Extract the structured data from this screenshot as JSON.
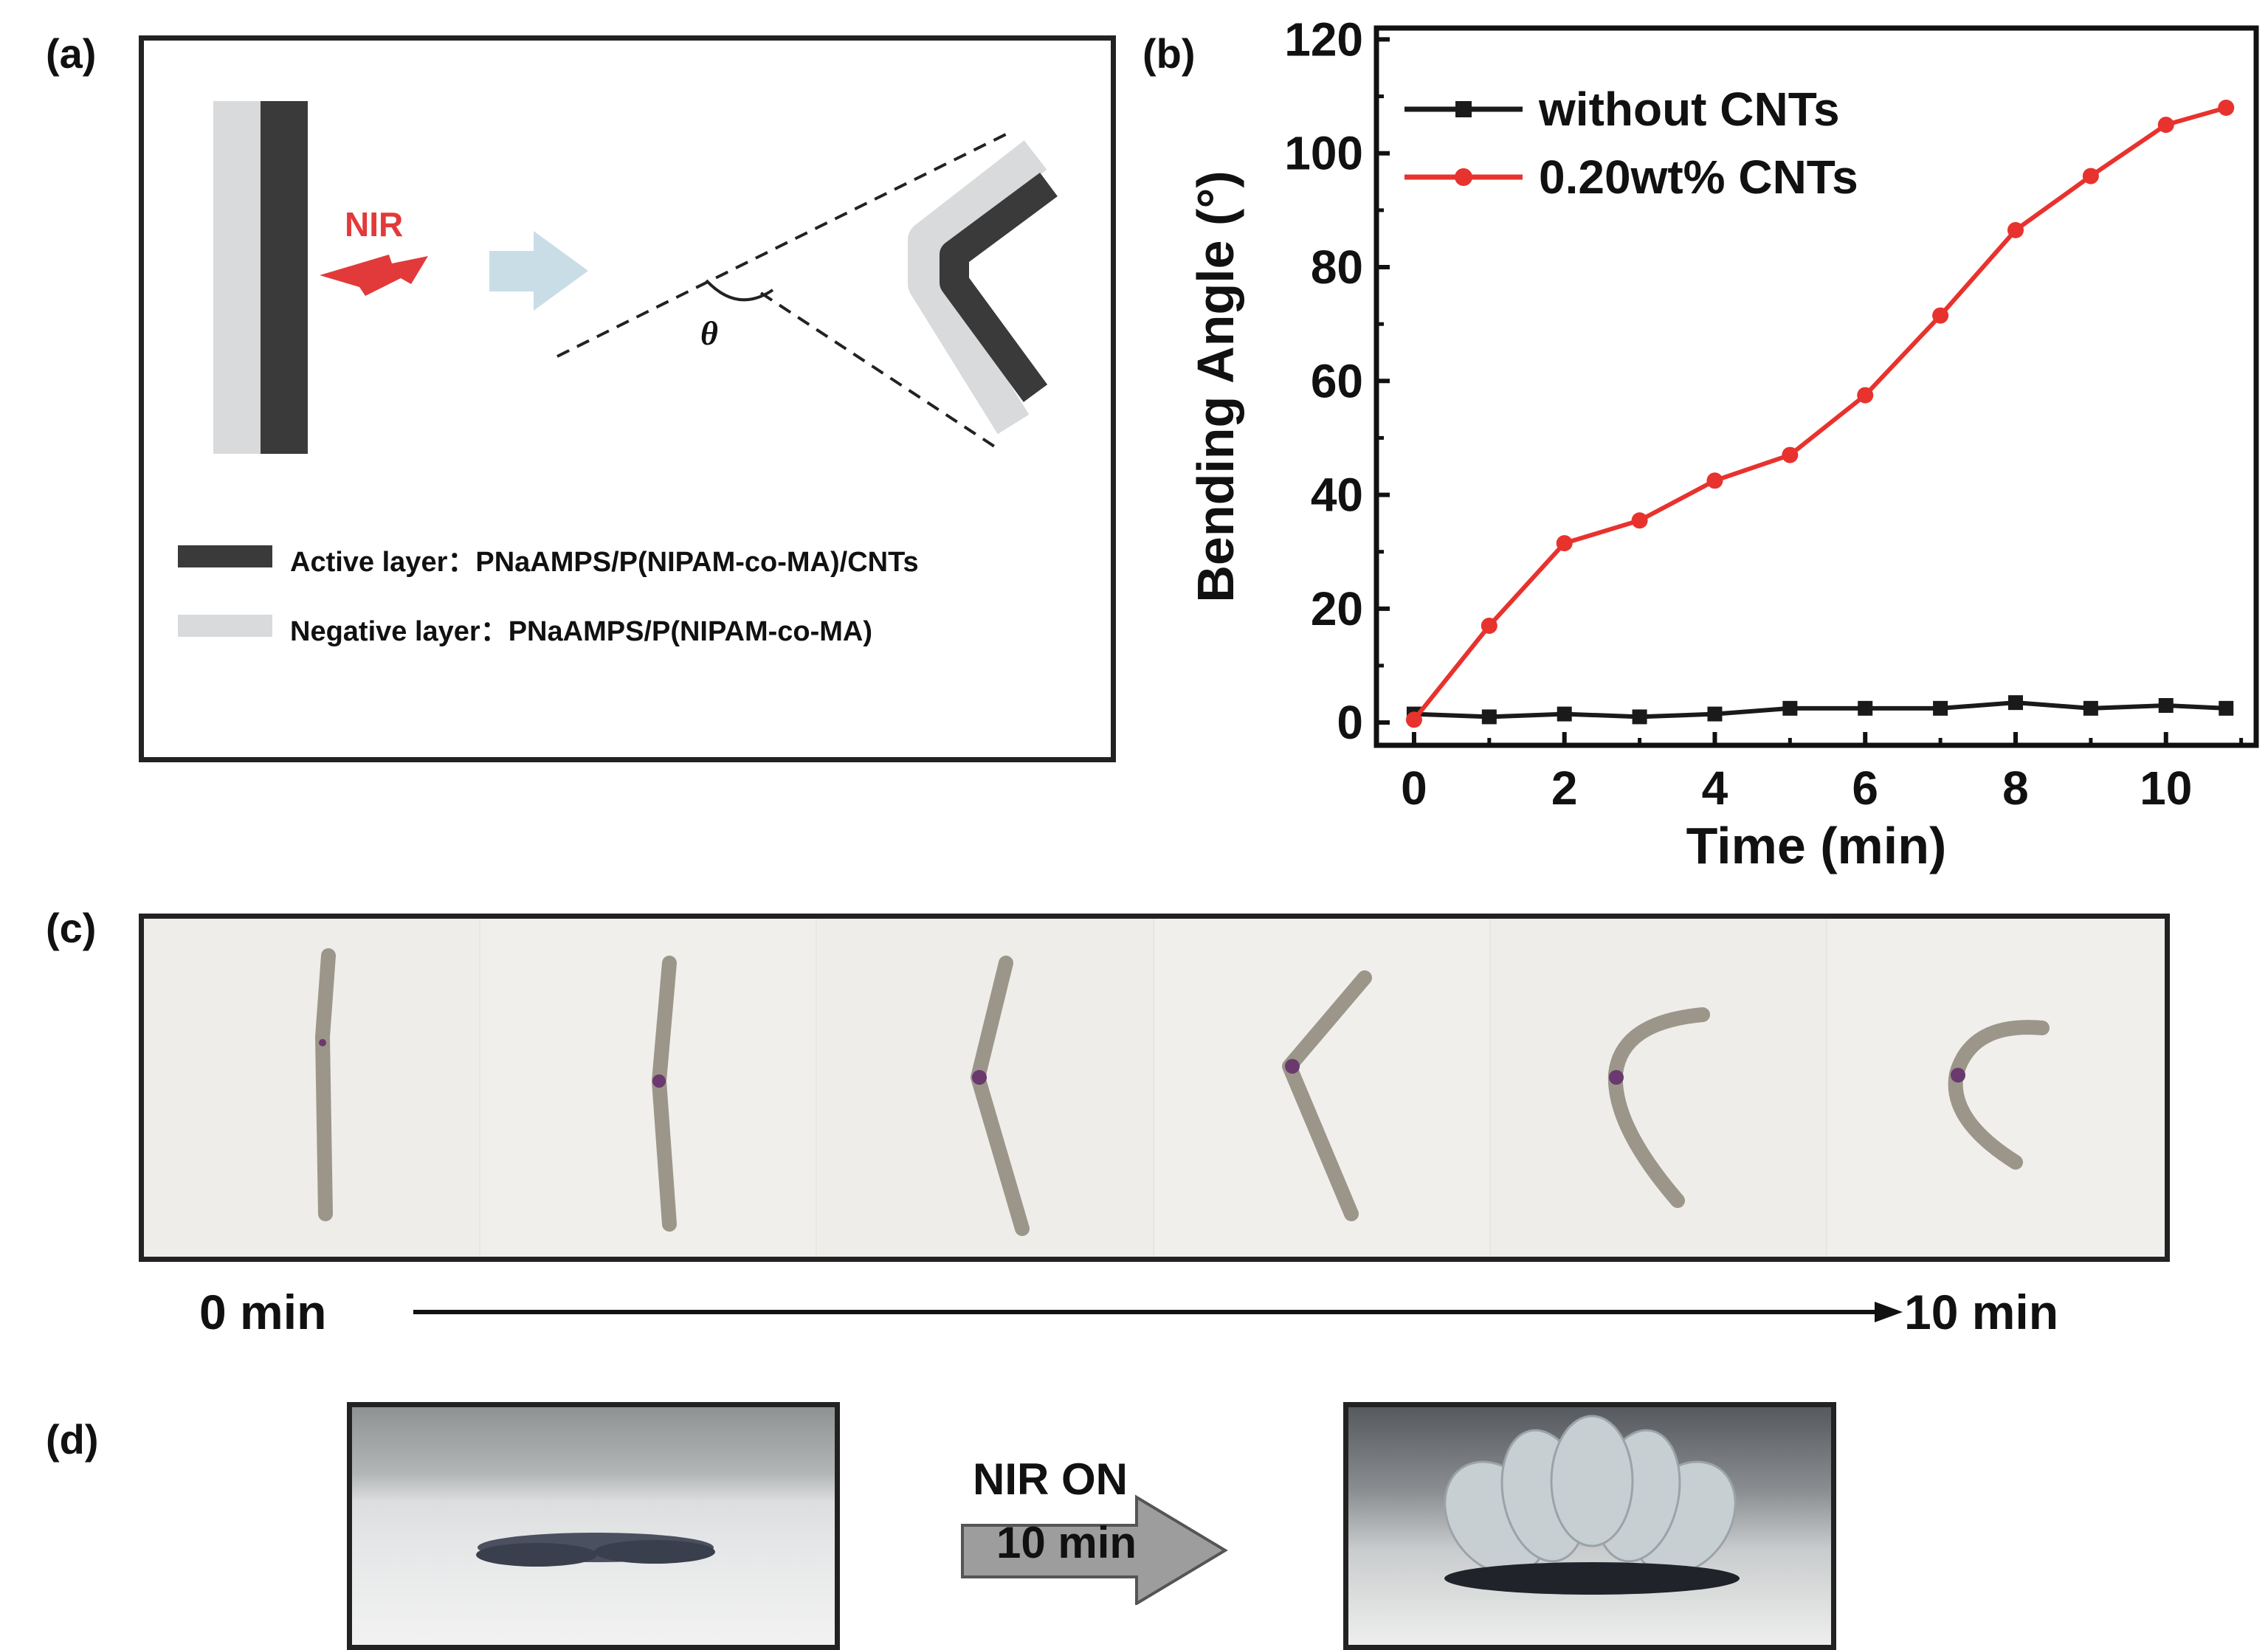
{
  "panels": {
    "a": {
      "label": "(a)",
      "nir_label": "NIR",
      "theta_label": "θ",
      "legend": [
        {
          "label": "Active layer：PNaAMPS/P(NIPAM-co-MA)/CNTs",
          "color": "#3a3a3a"
        },
        {
          "label": "Negative layer：PNaAMPS/P(NIPAM-co-MA)",
          "color": "#d8dadb"
        }
      ],
      "colors": {
        "active": "#3a3a3a",
        "negative": "#d8dadb",
        "nir": "#e23a3a",
        "arrow": "#c9dde6"
      }
    },
    "b": {
      "label": "(b)"
    },
    "c": {
      "label": "(c)",
      "start_label": "0 min",
      "end_label": "10 min",
      "frames": [
        "frame-1",
        "frame-2",
        "frame-3",
        "frame-4",
        "frame-5",
        "frame-6"
      ]
    },
    "d": {
      "label": "(d)",
      "arrow_text_top": "NIR ON",
      "arrow_text_bottom": "10 min"
    }
  },
  "chart_data": {
    "type": "line",
    "xlabel": "Time (min)",
    "ylabel": "Bending Angle (°)",
    "xlim": [
      -0.5,
      11.2
    ],
    "ylim": [
      -4,
      122
    ],
    "xticks": [
      0,
      2,
      4,
      6,
      8,
      10
    ],
    "yticks": [
      0,
      20,
      40,
      60,
      80,
      100,
      120
    ],
    "legend_position": "top-left",
    "series": [
      {
        "name": "without CNTs",
        "color": "#1a1a1a",
        "marker": "square",
        "x": [
          0,
          1,
          2,
          3,
          4,
          5,
          6,
          7,
          8,
          9,
          10,
          10.8
        ],
        "y": [
          1.5,
          1.0,
          1.5,
          1.0,
          1.5,
          2.5,
          2.5,
          2.5,
          3.5,
          2.5,
          3.0,
          2.5
        ]
      },
      {
        "name": "0.20wt% CNTs",
        "color": "#e8322e",
        "marker": "circle",
        "x": [
          0,
          1,
          2,
          3,
          4,
          5,
          6,
          7,
          8,
          9,
          10,
          10.8
        ],
        "y": [
          0.5,
          17,
          31.5,
          35.5,
          42.5,
          47,
          57.5,
          71.5,
          86.5,
          96,
          105,
          108
        ]
      }
    ]
  }
}
